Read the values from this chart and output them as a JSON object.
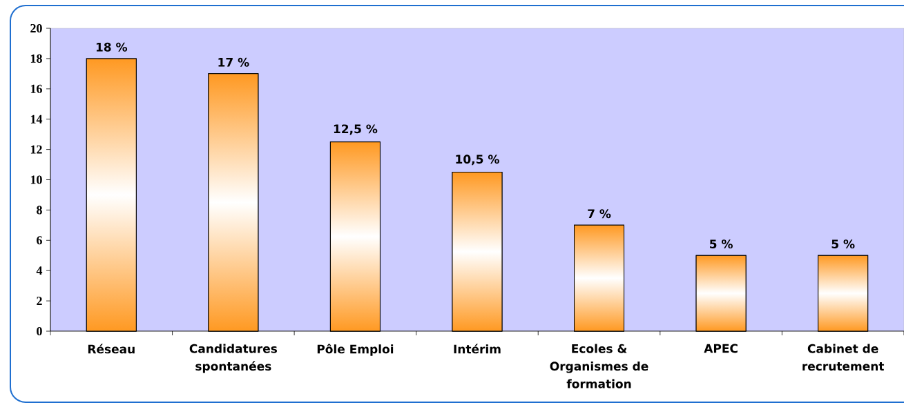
{
  "chart_data": {
    "type": "bar",
    "categories": [
      "Réseau",
      "Candidatures spontanées",
      "Pôle Emploi",
      "Intérim",
      "Ecoles & Organismes de formation",
      "APEC",
      "Cabinet de recrutement"
    ],
    "values": [
      18,
      17,
      12.5,
      10.5,
      7,
      5,
      5
    ],
    "value_labels": [
      "18 %",
      "17 %",
      "12,5 %",
      "10,5 %",
      "7 %",
      "5 %",
      "5 %"
    ],
    "color": "#ff9922",
    "ylim": [
      0,
      20
    ],
    "yticks": [
      0,
      2,
      4,
      6,
      8,
      10,
      12,
      14,
      16,
      18,
      20
    ]
  }
}
